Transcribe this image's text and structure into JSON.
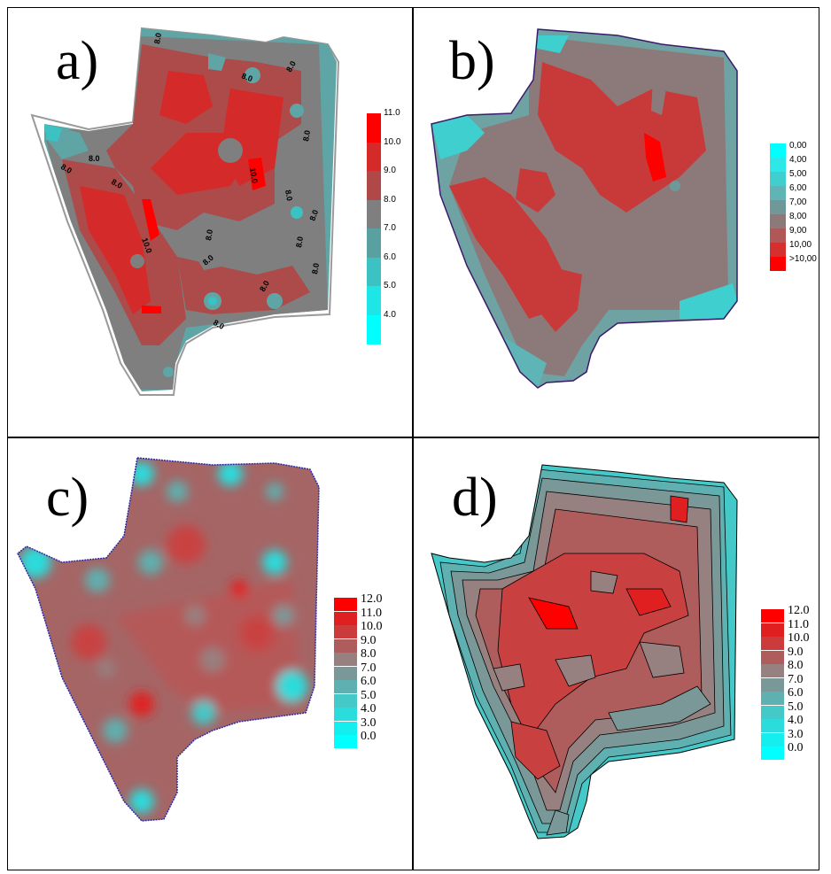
{
  "panels": {
    "a": {
      "label": "a)",
      "contour_labels": [
        "8.0",
        "8.0",
        "8.0",
        "8.0",
        "10.0",
        "8.0",
        "8.0",
        "8.0",
        "8.0",
        "8.0",
        "10.0",
        "8.0",
        "8.0",
        "8.0",
        "8.0",
        "8.0",
        "8.0"
      ],
      "legend": [
        {
          "label": "11.0",
          "color": "#ff0000"
        },
        {
          "label": "10.0",
          "color": "#d42a2a"
        },
        {
          "label": "9.0",
          "color": "#b14848"
        },
        {
          "label": "8.0",
          "color": "#7f7f7f"
        },
        {
          "label": "7.0",
          "color": "#5aa0a0"
        },
        {
          "label": "6.0",
          "color": "#3cc2c2"
        },
        {
          "label": "5.0",
          "color": "#1ee6e6"
        },
        {
          "label": "4.0",
          "color": "#00ffff"
        }
      ]
    },
    "b": {
      "label": "b)",
      "legend": [
        {
          "label": "0,00",
          "color": "#00ffff"
        },
        {
          "label": "4,00",
          "color": "#2ee8e8"
        },
        {
          "label": "5,00",
          "color": "#3fcfcf"
        },
        {
          "label": "6,00",
          "color": "#5fb5b5"
        },
        {
          "label": "7,00",
          "color": "#6f9999"
        },
        {
          "label": "8,00",
          "color": "#8c7a7a"
        },
        {
          "label": "9,00",
          "color": "#b05858"
        },
        {
          "label": "10,00",
          "color": "#d62f2f"
        },
        {
          "label": ">10,00",
          "color": "#ff0000"
        }
      ]
    },
    "c": {
      "label": "c)",
      "legend": [
        {
          "label": "12.0",
          "color": "#ff0000"
        },
        {
          "label": "11.0",
          "color": "#e02020"
        },
        {
          "label": "10.0",
          "color": "#cc3b3b"
        },
        {
          "label": "9.0",
          "color": "#ae5c5c"
        },
        {
          "label": "8.0",
          "color": "#978080"
        },
        {
          "label": "7.0",
          "color": "#7a9898"
        },
        {
          "label": "6.0",
          "color": "#5fb0b0"
        },
        {
          "label": "5.0",
          "color": "#44c8c8"
        },
        {
          "label": "4.0",
          "color": "#2bdcdc"
        },
        {
          "label": "3.0",
          "color": "#15eeee"
        },
        {
          "label": "0.0",
          "color": "#00ffff"
        }
      ]
    },
    "d": {
      "label": "d)",
      "legend": [
        {
          "label": "12.0",
          "color": "#ff0000"
        },
        {
          "label": "11.0",
          "color": "#e02020"
        },
        {
          "label": "10.0",
          "color": "#cc3b3b"
        },
        {
          "label": "9.0",
          "color": "#ae5c5c"
        },
        {
          "label": "8.0",
          "color": "#978080"
        },
        {
          "label": "7.0",
          "color": "#7a9898"
        },
        {
          "label": "6.0",
          "color": "#5fb0b0"
        },
        {
          "label": "5.0",
          "color": "#44c8c8"
        },
        {
          "label": "4.0",
          "color": "#2bdcdc"
        },
        {
          "label": "3.0",
          "color": "#15eeee"
        },
        {
          "label": "0.0",
          "color": "#00ffff"
        }
      ]
    }
  }
}
